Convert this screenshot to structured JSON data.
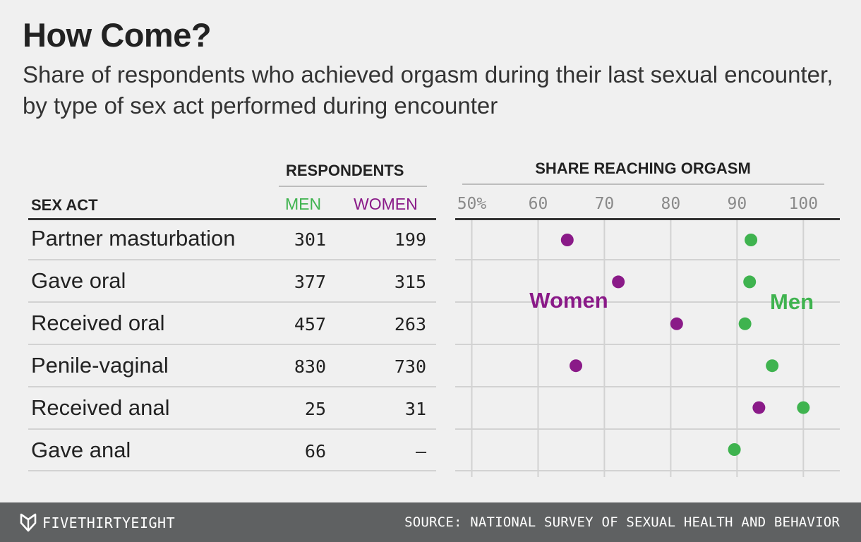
{
  "title": "How Come?",
  "subtitle": "Share of respondents who achieved orgasm during their last sexual encounter, by type of sex act performed during encounter",
  "table": {
    "group_header": "RESPONDENTS",
    "act_header": "SEX ACT",
    "men_header": "MEN",
    "women_header": "WOMEN",
    "rows": [
      {
        "act": "Partner masturbation",
        "men": "301",
        "women": "199"
      },
      {
        "act": "Gave oral",
        "men": "377",
        "women": "315"
      },
      {
        "act": "Received oral",
        "men": "457",
        "women": "263"
      },
      {
        "act": "Penile-vaginal",
        "men": "830",
        "women": "730"
      },
      {
        "act": "Received anal",
        "men": "25",
        "women": "31"
      },
      {
        "act": "Gave anal",
        "men": "66",
        "women": "—"
      }
    ]
  },
  "chart_data": {
    "type": "scatter",
    "title": "SHARE REACHING ORGASM",
    "x_ticks": [
      "50%",
      "60",
      "70",
      "80",
      "90",
      "100"
    ],
    "x_tick_values": [
      50,
      60,
      70,
      80,
      90,
      100
    ],
    "xlim": [
      47.5,
      105.5
    ],
    "categories": [
      "Partner masturbation",
      "Gave oral",
      "Received oral",
      "Penile-vaginal",
      "Received anal",
      "Gave anal"
    ],
    "series": [
      {
        "name": "Women",
        "color": "#8a1a88",
        "values": [
          64.4,
          72.1,
          80.9,
          65.7,
          93.3,
          null
        ]
      },
      {
        "name": "Men",
        "color": "#3fb34f",
        "values": [
          92.1,
          91.9,
          91.2,
          95.3,
          100.0,
          89.6
        ]
      }
    ],
    "grid": true
  },
  "footer": {
    "brand": "FIVETHIRTYEIGHT",
    "source": "SOURCE: NATIONAL SURVEY OF SEXUAL HEALTH AND BEHAVIOR"
  },
  "colors": {
    "men": "#3fb34f",
    "women": "#8a1a88",
    "footer_bg": "#5f6162"
  }
}
